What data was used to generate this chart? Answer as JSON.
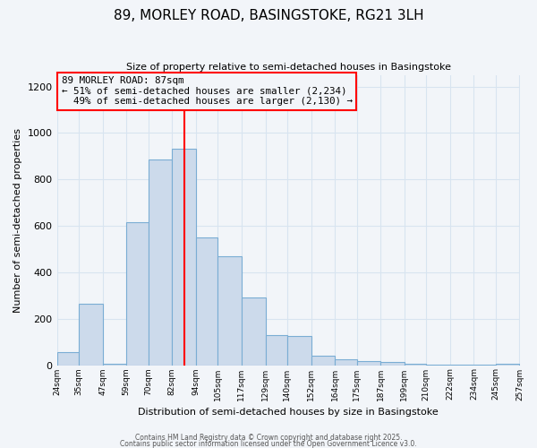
{
  "title": "89, MORLEY ROAD, BASINGSTOKE, RG21 3LH",
  "subtitle": "Size of property relative to semi-detached houses in Basingstoke",
  "xlabel": "Distribution of semi-detached houses by size in Basingstoke",
  "ylabel": "Number of semi-detached properties",
  "bar_left_edges": [
    24,
    35,
    47,
    59,
    70,
    82,
    94,
    105,
    117,
    129,
    140,
    152,
    164,
    175,
    187,
    199,
    210,
    222,
    234,
    245
  ],
  "bar_widths": [
    11,
    12,
    12,
    11,
    12,
    12,
    11,
    12,
    12,
    11,
    12,
    12,
    11,
    12,
    12,
    11,
    12,
    12,
    11,
    12
  ],
  "bar_heights": [
    55,
    265,
    5,
    615,
    885,
    930,
    550,
    470,
    290,
    130,
    125,
    40,
    25,
    18,
    12,
    7,
    3,
    2,
    1,
    5
  ],
  "tick_labels": [
    "24sqm",
    "35sqm",
    "47sqm",
    "59sqm",
    "70sqm",
    "82sqm",
    "94sqm",
    "105sqm",
    "117sqm",
    "129sqm",
    "140sqm",
    "152sqm",
    "164sqm",
    "175sqm",
    "187sqm",
    "199sqm",
    "210sqm",
    "222sqm",
    "234sqm",
    "245sqm",
    "257sqm"
  ],
  "tick_positions": [
    24,
    35,
    47,
    59,
    70,
    82,
    94,
    105,
    117,
    129,
    140,
    152,
    164,
    175,
    187,
    199,
    210,
    222,
    234,
    245,
    257
  ],
  "bar_color": "#ccdaeb",
  "bar_edge_color": "#7aadd4",
  "vline_x": 88,
  "vline_color": "red",
  "annotation_line1": "89 MORLEY ROAD: 87sqm",
  "annotation_line2": "← 51% of semi-detached houses are smaller (2,234)",
  "annotation_line3": "  49% of semi-detached houses are larger (2,130) →",
  "annotation_box_edgecolor": "red",
  "ylim": [
    0,
    1250
  ],
  "yticks": [
    0,
    200,
    400,
    600,
    800,
    1000,
    1200
  ],
  "footer_line1": "Contains HM Land Registry data © Crown copyright and database right 2025.",
  "footer_line2": "Contains public sector information licensed under the Open Government Licence v3.0.",
  "bg_color": "#f2f5f9",
  "grid_color": "#d8e4f0",
  "plot_bg_color": "#f2f5f9"
}
